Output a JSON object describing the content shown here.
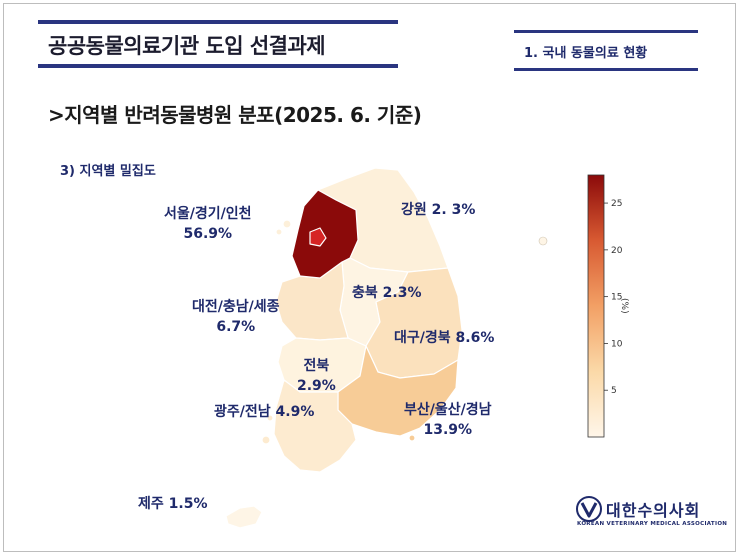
{
  "header": {
    "title": "공공동물의료기관 도입 선결과제",
    "section": "1. 국내 동물의료 현황"
  },
  "subtitle": ">지역별 반려동물병원 분포(2025. 6. 기준)",
  "item_heading": "3) 지역별 밀집도",
  "colors": {
    "navy": "#2a3580",
    "label_text": "#1f2a6b",
    "scale_low": "#fff6e9",
    "scale_high": "#8b0a0a"
  },
  "regions": [
    {
      "name": "서울/경기/인천",
      "value": "56.9%",
      "share": 56.9
    },
    {
      "name": "강원",
      "value": "2. 3%",
      "share": 2.3
    },
    {
      "name": "충북",
      "value": "2.3%",
      "share": 2.3
    },
    {
      "name": "대전/충남/세종",
      "value": "6.7%",
      "share": 6.7
    },
    {
      "name": "대구/경북",
      "value": "8.6%",
      "share": 8.6
    },
    {
      "name": "전북",
      "value": "2.9%",
      "share": 2.9
    },
    {
      "name": "광주/전남",
      "value": "4.9%",
      "share": 4.9
    },
    {
      "name": "부산/울산/경남",
      "value": "13.9%",
      "share": 13.9
    },
    {
      "name": "제주",
      "value": "1.5%",
      "share": 1.5
    }
  ],
  "legend": {
    "ticks": [
      "5",
      "10",
      "15",
      "20",
      "25"
    ],
    "unit": "(%)"
  },
  "association": {
    "name_ko": "대한수의사회",
    "name_en": "KOREAN VETERINARY MEDICAL ASSOCIATION"
  }
}
